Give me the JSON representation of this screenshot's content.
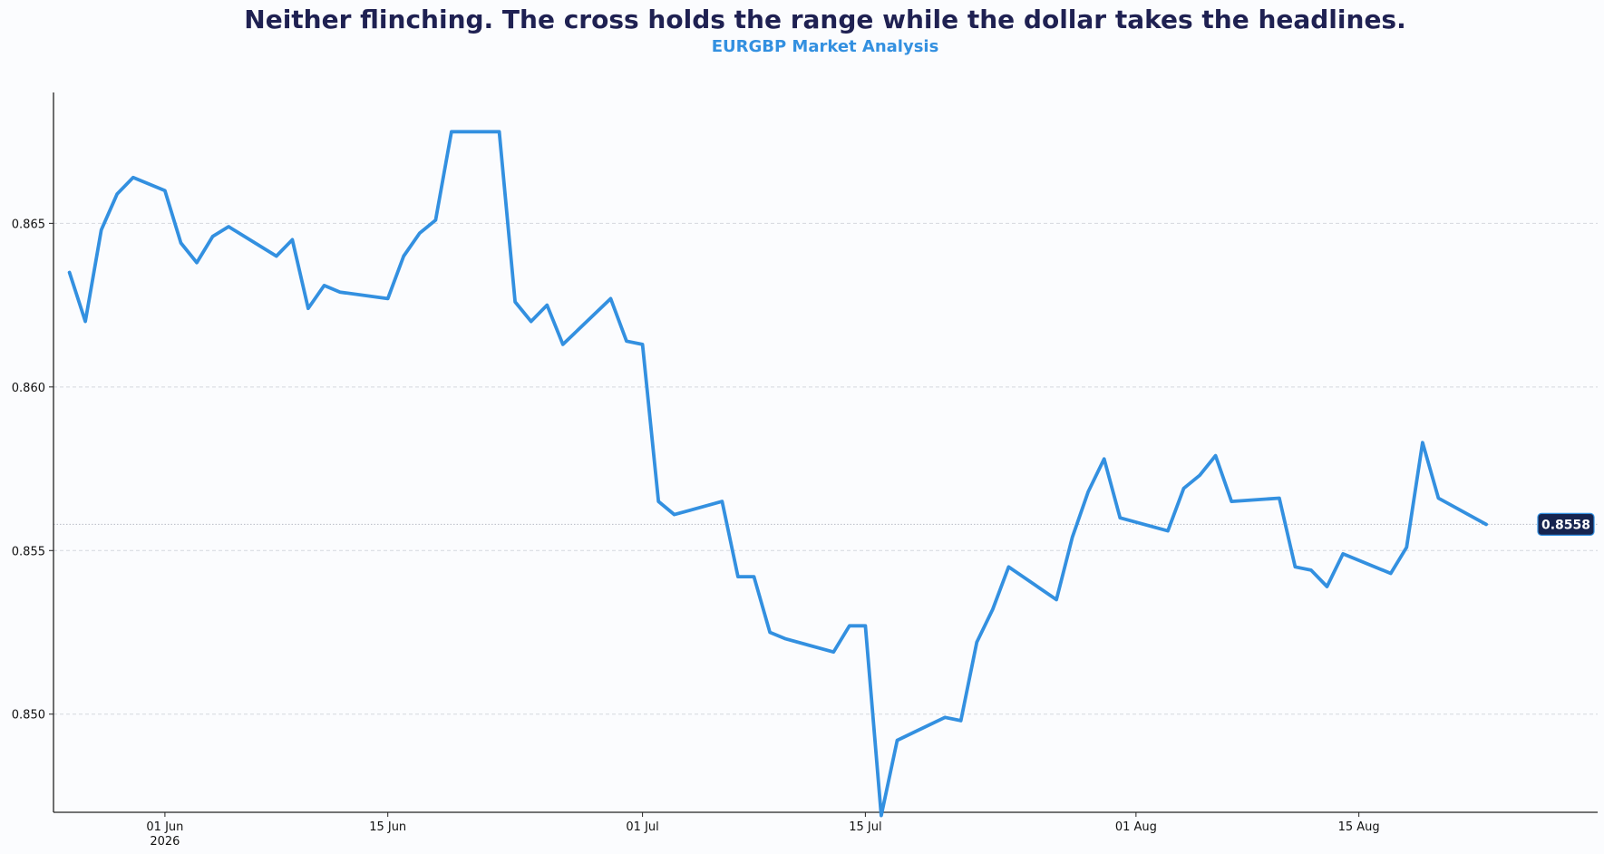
{
  "chart_data": {
    "type": "line",
    "title": "Neither flinching. The cross holds the range while the dollar takes the headlines.",
    "subtitle": "EURGBP Market Analysis",
    "xlabel": "",
    "ylabel": "",
    "grid": "horizontal dashed",
    "last_value_label": "0.8558",
    "last_value": 0.8558,
    "ylim": [
      0.847,
      0.869
    ],
    "xlim": [
      "2026-05-25",
      "2026-08-30"
    ],
    "yticks": [
      {
        "value": 0.85,
        "label": "0.850"
      },
      {
        "value": 0.855,
        "label": "0.855"
      },
      {
        "value": 0.86,
        "label": "0.860"
      },
      {
        "value": 0.865,
        "label": "0.865"
      }
    ],
    "xticks": [
      {
        "date": "2026-06-01",
        "label": "01 Jun",
        "sublabel": "2026"
      },
      {
        "date": "2026-06-15",
        "label": "15 Jun",
        "sublabel": ""
      },
      {
        "date": "2026-07-01",
        "label": "01 Jul",
        "sublabel": ""
      },
      {
        "date": "2026-07-15",
        "label": "15 Jul",
        "sublabel": ""
      },
      {
        "date": "2026-08-01",
        "label": "01 Aug",
        "sublabel": ""
      },
      {
        "date": "2026-08-15",
        "label": "15 Aug",
        "sublabel": ""
      }
    ],
    "colors": {
      "line": "#3390e0",
      "title": "#1f2152",
      "subtitle": "#3390e0",
      "badge_bg": "#16244f",
      "badge_text": "#ffffff",
      "grid": "#d5d8de",
      "axis": "#222222"
    },
    "series": [
      {
        "x": [
          "2026-05-26",
          "2026-05-27",
          "2026-05-28",
          "2026-05-29",
          "2026-05-30",
          "2026-06-01",
          "2026-06-02",
          "2026-06-03",
          "2026-06-04",
          "2026-06-05",
          "2026-06-08",
          "2026-06-09",
          "2026-06-10",
          "2026-06-11",
          "2026-06-12",
          "2026-06-15",
          "2026-06-16",
          "2026-06-17",
          "2026-06-18",
          "2026-06-19",
          "2026-06-22",
          "2026-06-23",
          "2026-06-24",
          "2026-06-25",
          "2026-06-26",
          "2026-06-29",
          "2026-06-30",
          "2026-07-01",
          "2026-07-02",
          "2026-07-03",
          "2026-07-06",
          "2026-07-07",
          "2026-07-08",
          "2026-07-09",
          "2026-07-10",
          "2026-07-13",
          "2026-07-14",
          "2026-07-15",
          "2026-07-16",
          "2026-07-17",
          "2026-07-20",
          "2026-07-21",
          "2026-07-22",
          "2026-07-23",
          "2026-07-24",
          "2026-07-27",
          "2026-07-28",
          "2026-07-29",
          "2026-07-30",
          "2026-07-31",
          "2026-08-03",
          "2026-08-04",
          "2026-08-05",
          "2026-08-06",
          "2026-08-07",
          "2026-08-10",
          "2026-08-11",
          "2026-08-12",
          "2026-08-13",
          "2026-08-14",
          "2026-08-17",
          "2026-08-18",
          "2026-08-19",
          "2026-08-20",
          "2026-08-23"
        ],
        "y": [
          0.8635,
          0.862,
          0.8648,
          0.8659,
          0.8664,
          0.866,
          0.8644,
          0.8638,
          0.8646,
          0.8649,
          0.864,
          0.8645,
          0.8624,
          0.8631,
          0.8629,
          0.8627,
          0.864,
          0.8647,
          0.8651,
          0.8678,
          0.8678,
          0.8626,
          0.862,
          0.8625,
          0.8613,
          0.8627,
          0.8614,
          0.8613,
          0.8565,
          0.8561,
          0.8565,
          0.8542,
          0.8542,
          0.8525,
          0.8523,
          0.8519,
          0.8527,
          0.8527,
          0.8469,
          0.8492,
          0.8499,
          0.8498,
          0.8522,
          0.8532,
          0.8545,
          0.8535,
          0.8554,
          0.8568,
          0.8578,
          0.856,
          0.8556,
          0.8569,
          0.8573,
          0.8579,
          0.8565,
          0.8566,
          0.8545,
          0.8544,
          0.8539,
          0.8549,
          0.8543,
          0.8551,
          0.8583,
          0.8566,
          0.8558
        ]
      }
    ]
  }
}
